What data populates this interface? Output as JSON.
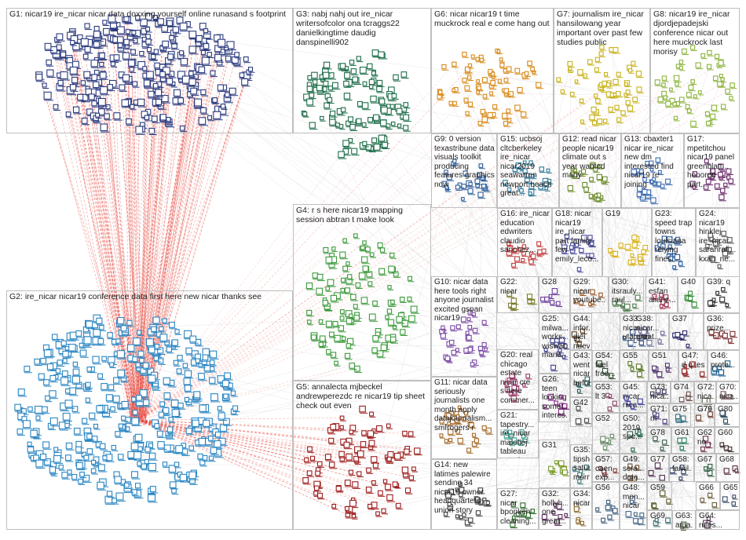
{
  "colors": {
    "edge_cross": "#e8453c",
    "edge_light": "#c9c9c9",
    "border": "#bfbfbf",
    "text": "#222222"
  },
  "groups": [
    {
      "id": "G1",
      "label": "G1: nicar19 ire_nicar nicar data doxxing yourself online runasand s footprint",
      "color": "#2b3a7e"
    },
    {
      "id": "G2",
      "label": "G2: ire_nicar nicar19 conference data first here new nicar thanks see",
      "color": "#2a86c3"
    },
    {
      "id": "G3",
      "label": "G3: nabj nahj out ire_nicar writersofcolor ona tcraggs22 danielkingtime daudig danspinelli902",
      "color": "#1f6e4a"
    },
    {
      "id": "G4",
      "label": "G4: r s here nicar19 mapping session abtran t make look",
      "color": "#3c9a3c"
    },
    {
      "id": "G5",
      "label": "G5: annalecta mjbeckel andrewperezdc re nicar19 tip sheet check out even",
      "color": "#9c1c1c"
    },
    {
      "id": "G6",
      "label": "G6: nicar nicar19 t time muckrock real e come hang out",
      "color": "#d88a1a"
    },
    {
      "id": "G7",
      "label": "G7: journalism ire_nicar hansilowang year important over past few studies public",
      "color": "#c8b21c"
    },
    {
      "id": "G8",
      "label": "G8: nicar19 ire_nicar djordjepadejski conference nicar out here muckrock last morisy",
      "color": "#8cb43c"
    },
    {
      "id": "G9",
      "label": "G9: 0 version texastribune data visuals toolkit producing features graphics now",
      "color": "#2e5f9c"
    },
    {
      "id": "G10",
      "label": "G10: nicar data here tools right anyone journalist excited gspan nicar19",
      "color": "#7a4aa5"
    },
    {
      "id": "G11",
      "label": "G11: nicar data seriously journalists one month apply datajournalism... smfrogers r",
      "color": "#a46a2a"
    },
    {
      "id": "G12",
      "label": "G12: read nicar people nicar19 climate out s year wanted many",
      "color": "#6a8a2a"
    },
    {
      "id": "G13",
      "label": "G13: cbaxter1 nicar ire_nicar new dm interested find nicar19 re joining",
      "color": "#3a6ab0"
    },
    {
      "id": "G14",
      "label": "G14: new latimes palewire sending 34 nicar19 owner headquarters union story",
      "color": "#444444"
    },
    {
      "id": "G15",
      "label": "G15: ucbsoj cltcberkeley ire_nicar nicar2019 seawarren newport beach great...",
      "color": "#2a7a9a"
    },
    {
      "id": "G16",
      "label": "G16: ire_nicar education edwriters claudio sanchez...",
      "color": "#c03a3a"
    },
    {
      "id": "G17",
      "label": "G17: mpetitchou nicar19 panel greenblatt... honored part...",
      "color": "#6a2a6a"
    },
    {
      "id": "G18",
      "label": "G18: nicar nicar19 ire_nicar part family few emily_leco...",
      "color": "#4a4a9a"
    },
    {
      "id": "G19",
      "label": "G19",
      "color": "#d8b21a"
    },
    {
      "id": "G20",
      "label": "G20: real chicago estate nicar cre s here commer...",
      "color": "#9a3a6a"
    },
    {
      "id": "G21",
      "label": "G21: tapestry... ire_nicar malofiej tableau eyeofest...",
      "color": "#3a9a8a"
    },
    {
      "id": "G22",
      "label": "G22: nicar",
      "color": "#7a7a2a"
    },
    {
      "id": "G23",
      "label": "G23: speed trap towns louisiana relying fines...",
      "color": "#2a5a9a"
    },
    {
      "id": "G24",
      "label": "G24: nicar19 hinklej ire_nicar sarahrafi... kxan_ne...",
      "color": "#5a5a5a"
    },
    {
      "id": "G25",
      "label": "G25: milwa... works... wiswat... mana...",
      "color": "#3a3a8a"
    },
    {
      "id": "G26",
      "label": "G26: teen looking somet... interes...",
      "color": "#8a2a8a"
    },
    {
      "id": "G27",
      "label": "G27: nicar bpopken cleaning...",
      "color": "#2a6a2a"
    },
    {
      "id": "G28",
      "label": "G28",
      "color": "#6a3a9a"
    },
    {
      "id": "G29",
      "label": "G29: nicar youtube...",
      "color": "#9a5a2a"
    },
    {
      "id": "G30",
      "label": "G30: itsrauly... raul...",
      "color": "#4a7a4a"
    },
    {
      "id": "G31",
      "label": "G31",
      "color": "#7a9a2a"
    },
    {
      "id": "G32",
      "label": "G32: hollyh... one great...",
      "color": "#5a2a5a"
    },
    {
      "id": "G33",
      "label": "G33: nicar... utaustin",
      "color": "#2a4a7a"
    },
    {
      "id": "G34",
      "label": "G34: nicar",
      "color": "#8a6a2a"
    },
    {
      "id": "G35",
      "label": "G35: tipsh... satur... morn...",
      "color": "#3a7a7a"
    },
    {
      "id": "G36",
      "label": "G36: prize...",
      "color": "#7a2a2a"
    },
    {
      "id": "G37",
      "label": "G37",
      "color": "#2a2a6a"
    },
    {
      "id": "G38",
      "label": "G38: nicar... great...",
      "color": "#6a6a9a"
    },
    {
      "id": "G39",
      "label": "G39: q",
      "color": "#2a2a2a"
    },
    {
      "id": "G40",
      "label": "G40",
      "color": "#3a8a3a"
    },
    {
      "id": "G41",
      "label": "G41: esfan alianz...",
      "color": "#9a2a4a"
    },
    {
      "id": "G42",
      "label": "G42",
      "color": "#4a4a4a"
    },
    {
      "id": "G43",
      "label": "G43: went nicar befor...",
      "color": "#2a5a5a"
    },
    {
      "id": "G44",
      "label": "G44: infor... giei nuev...",
      "color": "#5a3a1a"
    },
    {
      "id": "G45",
      "label": "G45: nicar nica...",
      "color": "#3a3a9a"
    },
    {
      "id": "G46",
      "label": "G46: prote...",
      "color": "#1a5a8a"
    },
    {
      "id": "G47",
      "label": "G47: d q les",
      "color": "#8a1a1a"
    },
    {
      "id": "G48",
      "label": "G48: mon... nicar",
      "color": "#4a6a8a"
    },
    {
      "id": "G49",
      "label": "G49: scra... data...",
      "color": "#6a4a2a"
    },
    {
      "id": "G50",
      "label": "G50: 2019 spe...",
      "color": "#2a6a4a"
    },
    {
      "id": "G51",
      "label": "G51",
      "color": "#4a2a6a"
    },
    {
      "id": "G52",
      "label": "G52",
      "color": "#6a8a6a"
    },
    {
      "id": "G53",
      "label": "G53: lt 3",
      "color": "#8a4a6a"
    },
    {
      "id": "G54",
      "label": "G54: feel free...",
      "color": "#2a4a2a"
    },
    {
      "id": "G55",
      "label": "G55",
      "color": "#5a7a2a"
    },
    {
      "id": "G56",
      "label": "G56",
      "color": "#3a5a7a"
    },
    {
      "id": "G57",
      "label": "G57: caen exp...",
      "color": "#7a3a3a"
    },
    {
      "id": "G58",
      "label": "G58: famil...",
      "color": "#2a3a5a"
    },
    {
      "id": "G59",
      "label": "G59",
      "color": "#5a5a2a"
    },
    {
      "id": "G60",
      "label": "G60",
      "color": "#3a2a2a"
    },
    {
      "id": "G61",
      "label": "G61",
      "color": "#2a7a5a"
    },
    {
      "id": "G62",
      "label": "G62: no...",
      "color": "#6a2a4a"
    },
    {
      "id": "G63",
      "label": "G63: ama...",
      "color": "#4a5a3a"
    },
    {
      "id": "G64",
      "label": "G64: rules...",
      "color": "#5a3a5a"
    },
    {
      "id": "G65",
      "label": "G65",
      "color": "#3a4a6a"
    },
    {
      "id": "G66",
      "label": "G66",
      "color": "#6a5a3a"
    },
    {
      "id": "G67",
      "label": "G67",
      "color": "#2a5a3a"
    },
    {
      "id": "G68",
      "label": "G68",
      "color": "#5a2a3a"
    },
    {
      "id": "G69",
      "label": "G69",
      "color": "#3a6a6a"
    },
    {
      "id": "G70",
      "label": "G70: nica...",
      "color": "#7a5a5a"
    },
    {
      "id": "G71",
      "label": "G71: m",
      "color": "#4a3a7a"
    },
    {
      "id": "G72",
      "label": "G72: nica...",
      "color": "#5a6a4a"
    },
    {
      "id": "G73",
      "label": "G73: nica...",
      "color": "#3a3a5a"
    },
    {
      "id": "G74",
      "label": "G74",
      "color": "#6a4a4a"
    },
    {
      "id": "G75",
      "label": "G75",
      "color": "#2a6a7a"
    },
    {
      "id": "G76",
      "label": "G76",
      "color": "#5a4a2a"
    },
    {
      "id": "G77",
      "label": "G77",
      "color": "#4a2a4a"
    },
    {
      "id": "G78",
      "label": "G78",
      "color": "#3a5a4a"
    },
    {
      "id": "G79",
      "label": "G79",
      "color": "#6a3a2a"
    },
    {
      "id": "G80",
      "label": "G80",
      "color": "#2a4a5a"
    }
  ]
}
